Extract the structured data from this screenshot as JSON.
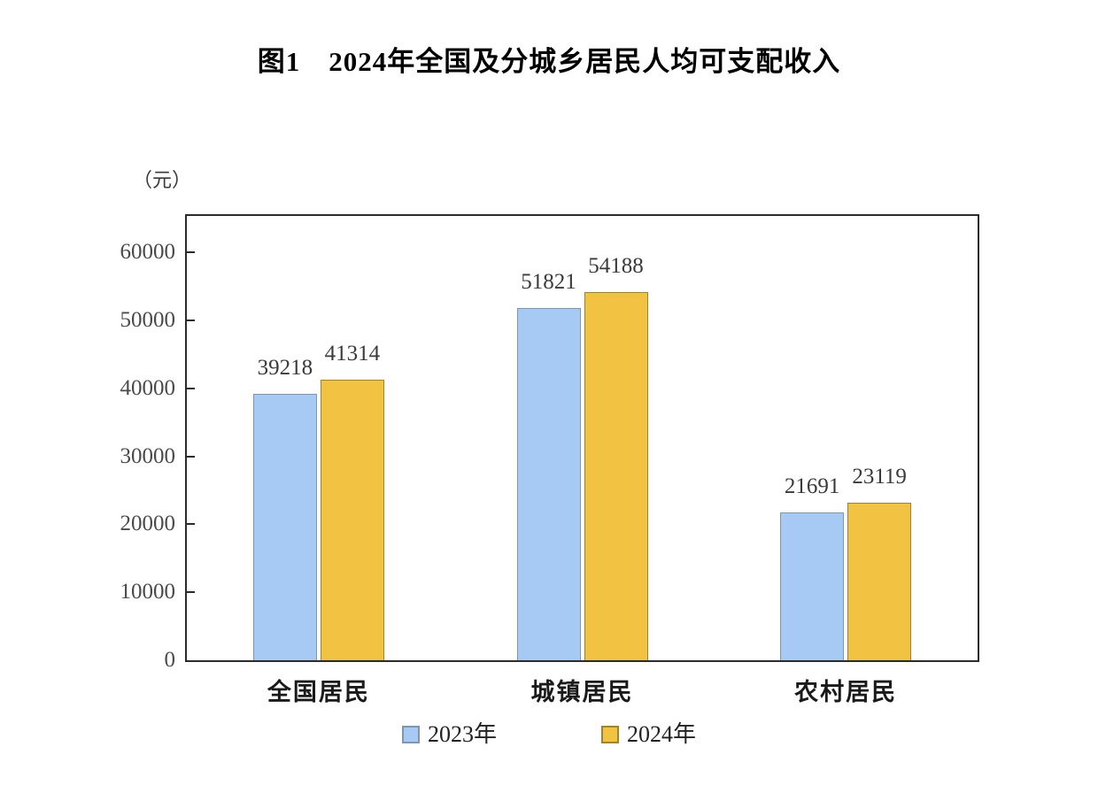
{
  "page": {
    "background": "#ffffff"
  },
  "chart_data": {
    "type": "bar",
    "title": "图1　2024年全国及分城乡居民人均可支配收入",
    "unit_label": "（元）",
    "xlabel": "",
    "ylabel": "（元）",
    "categories": [
      "全国居民",
      "城镇居民",
      "农村居民"
    ],
    "series": [
      {
        "name": "2023年",
        "color": "#a6caf3",
        "border_color": "#8096ab",
        "values": [
          39218,
          51821,
          21691
        ]
      },
      {
        "name": "2024年",
        "color": "#f2c242",
        "border_color": "#9d8432",
        "values": [
          41314,
          54188,
          23119
        ]
      }
    ],
    "yticks": [
      0,
      10000,
      20000,
      30000,
      40000,
      50000,
      60000
    ],
    "ylim": [
      0,
      65300
    ],
    "grid": false,
    "legend_position": "bottom",
    "axis_color": "#2b2b2b",
    "label_color": "#3a3a3a"
  }
}
